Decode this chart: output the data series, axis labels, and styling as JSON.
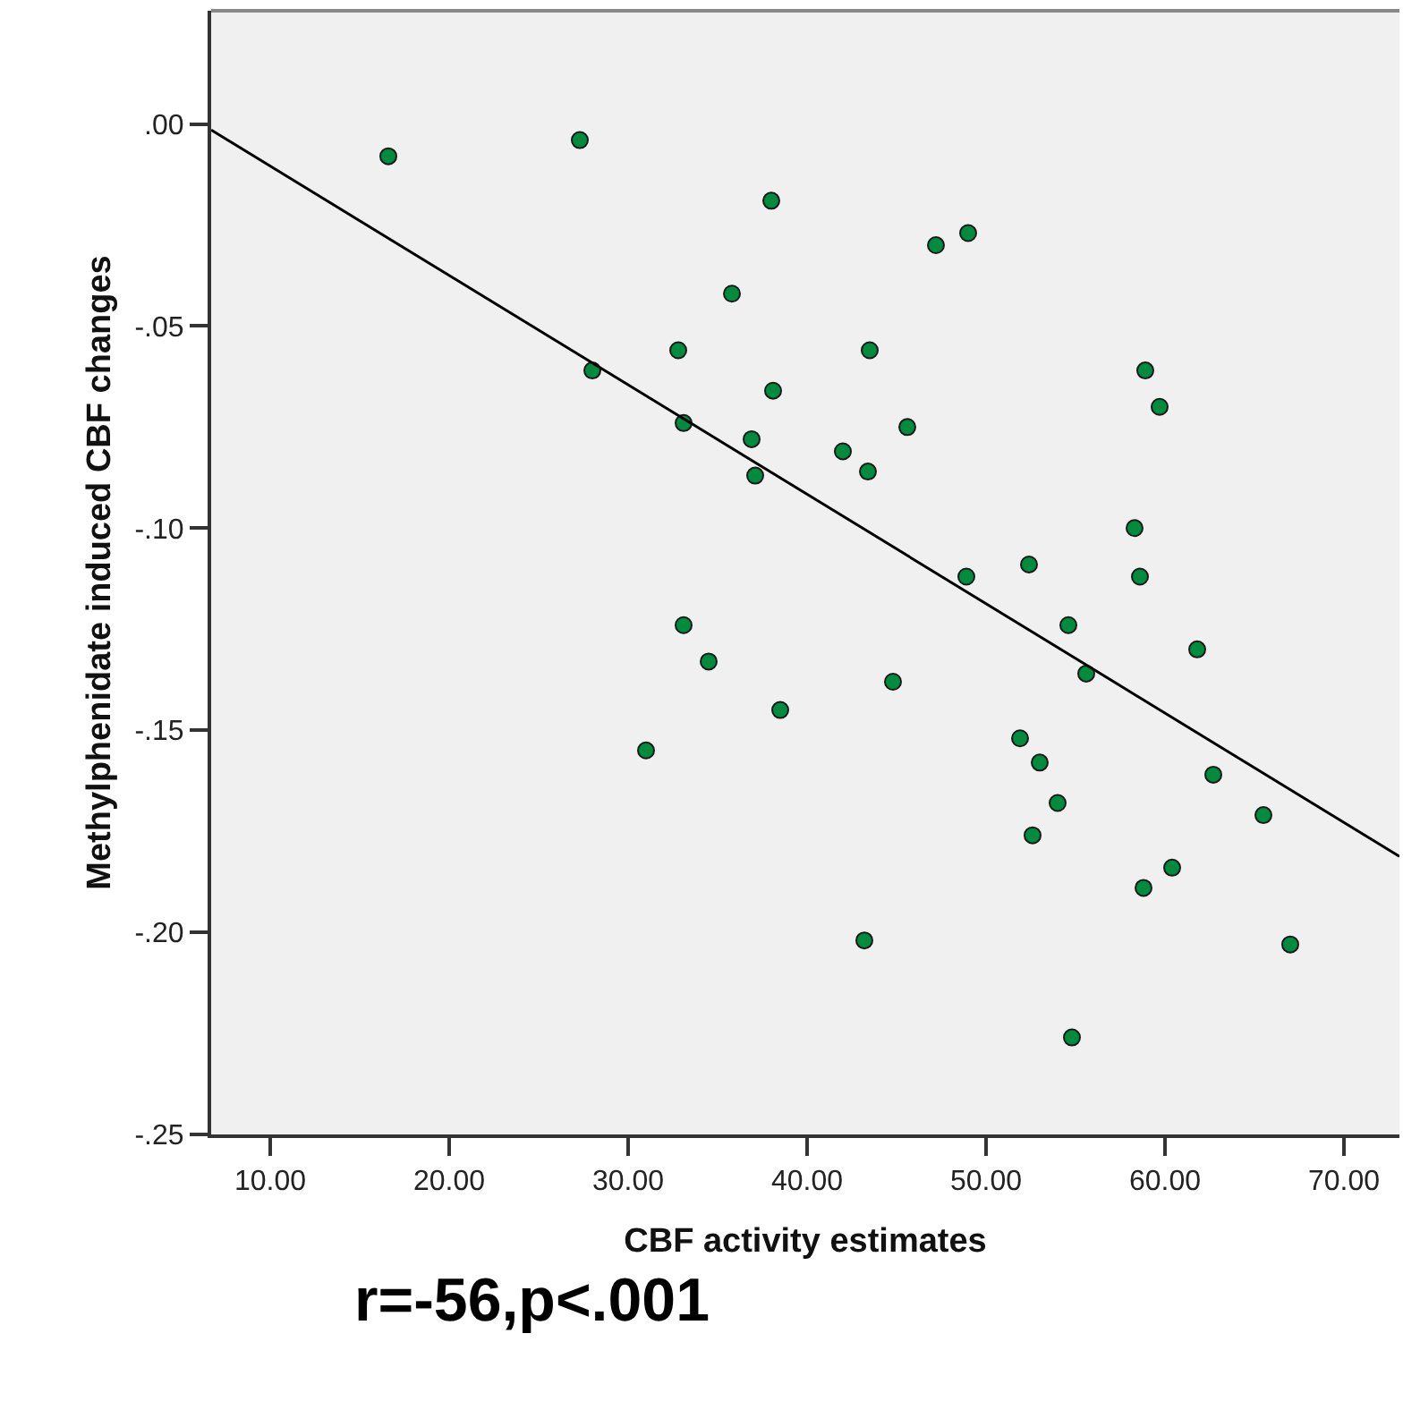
{
  "chart_data": {
    "type": "scatter",
    "xlabel": "CBF activity estimates",
    "ylabel": "Methylphenidate induced CBF changes",
    "annotations": [
      "r=-56,p<.001"
    ],
    "xlim": [
      6.7,
      73.1
    ],
    "ylim": [
      -0.25,
      0.028
    ],
    "xticks": [
      {
        "value": 10,
        "label": "10.00"
      },
      {
        "value": 20,
        "label": "20.00"
      },
      {
        "value": 30,
        "label": "30.00"
      },
      {
        "value": 40,
        "label": "40.00"
      },
      {
        "value": 50,
        "label": "50.00"
      },
      {
        "value": 60,
        "label": "60.00"
      },
      {
        "value": 70,
        "label": "70.00"
      }
    ],
    "yticks": [
      {
        "value": 0,
        "label": ".00"
      },
      {
        "value": -0.05,
        "label": "-.05"
      },
      {
        "value": -0.1,
        "label": "-.10"
      },
      {
        "value": -0.15,
        "label": "-.15"
      },
      {
        "value": -0.2,
        "label": "-.20"
      },
      {
        "value": -0.25,
        "label": "-.25"
      }
    ],
    "grid": false,
    "marker": "circle",
    "series": [
      {
        "color": "#008c3c",
        "x": [
          16.6,
          27.3,
          38.0,
          47.2,
          49.0,
          35.8,
          32.8,
          28.0,
          38.1,
          33.1,
          36.9,
          37.1,
          43.5,
          42.0,
          43.4,
          45.6,
          48.9,
          52.4,
          58.3,
          58.6,
          58.9,
          59.7,
          54.6,
          55.6,
          61.8,
          44.8,
          38.5,
          51.9,
          53.0,
          54.0,
          52.6,
          62.7,
          65.5,
          60.4,
          58.8,
          43.2,
          67.0,
          54.8,
          33.1,
          34.5,
          31.0
        ],
        "values": [
          -0.008,
          -0.004,
          -0.019,
          -0.03,
          -0.027,
          -0.042,
          -0.056,
          -0.061,
          -0.066,
          -0.074,
          -0.078,
          -0.087,
          -0.056,
          -0.081,
          -0.086,
          -0.075,
          -0.112,
          -0.109,
          -0.1,
          -0.112,
          -0.061,
          -0.07,
          -0.124,
          -0.136,
          -0.13,
          -0.138,
          -0.145,
          -0.152,
          -0.158,
          -0.168,
          -0.176,
          -0.161,
          -0.171,
          -0.184,
          -0.189,
          -0.202,
          -0.203,
          -0.226,
          -0.124,
          -0.133,
          -0.155
        ]
      },
      {
        "type": "line",
        "color": "#000000",
        "marker": "none",
        "line_style": "solid",
        "x": [
          6.7,
          73.1
        ],
        "values": [
          -0.0015,
          -0.1812
        ]
      }
    ]
  }
}
